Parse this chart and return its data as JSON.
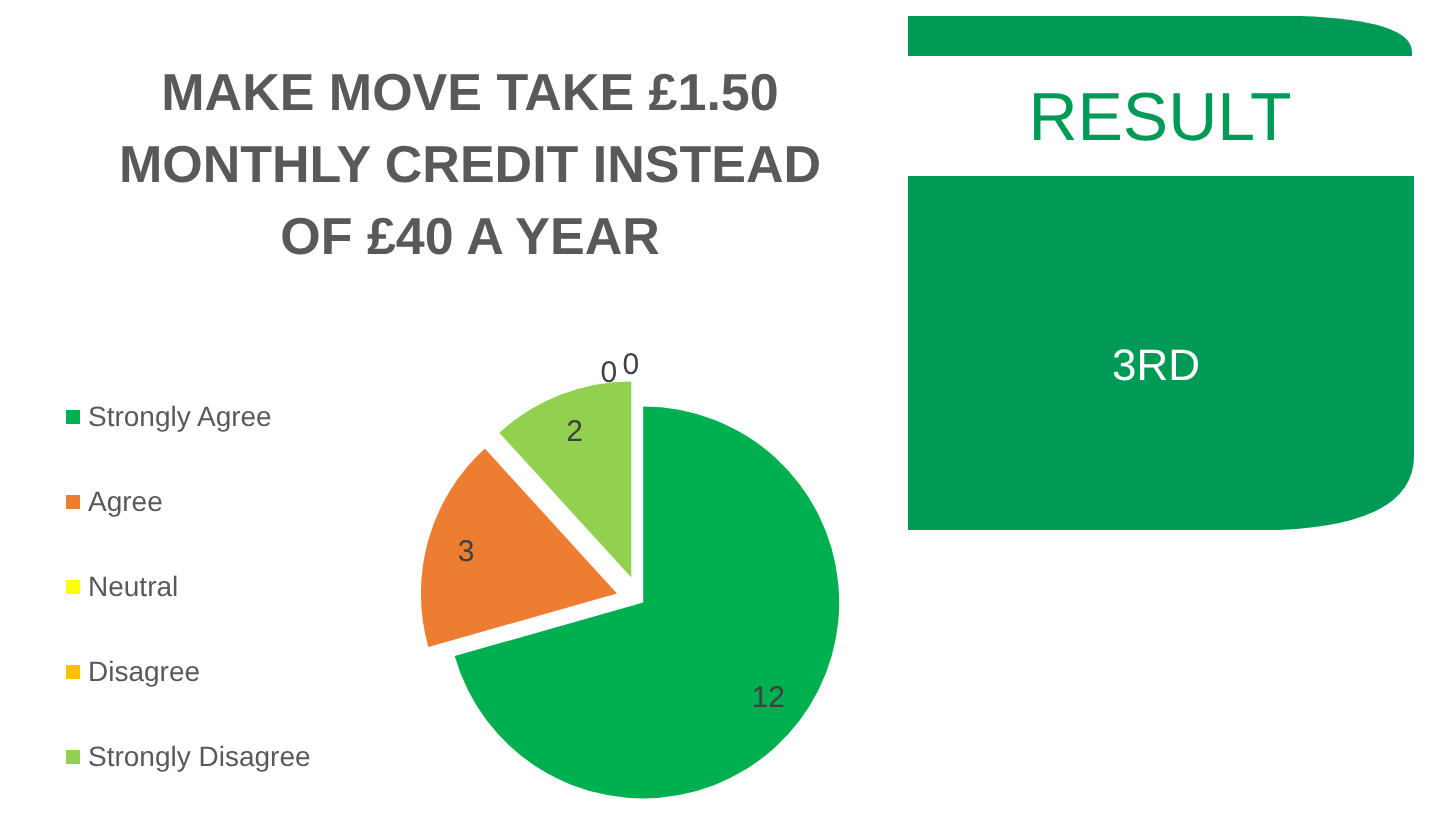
{
  "chart_data": [
    {
      "type": "pie",
      "title": "MAKE MOVE TAKE £1.50 MONTHLY CREDIT INSTEAD OF £40 A YEAR",
      "categories": [
        "Strongly Agree",
        "Agree",
        "Neutral",
        "Disagree",
        "Strongly Disagree"
      ],
      "values": [
        12,
        3,
        0,
        0,
        2
      ],
      "colors": [
        "#00b050",
        "#ed7d31",
        "#ffff00",
        "#ffc000",
        "#92d050"
      ],
      "value_labels": [
        "12",
        "3",
        "0",
        "0",
        "2"
      ],
      "legend": "left"
    },
    {
      "type": "other",
      "title": "RESULT",
      "annotations": [
        "3RD"
      ]
    }
  ]
}
